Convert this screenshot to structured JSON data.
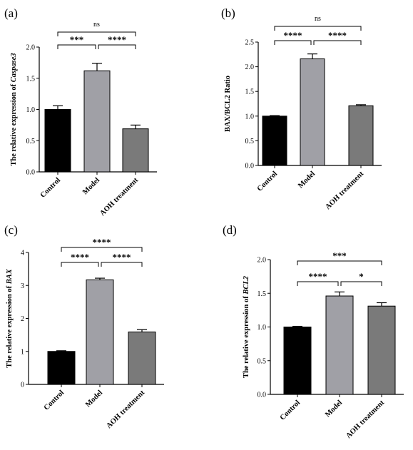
{
  "chart_data": [
    {
      "panel": "(a)",
      "type": "bar",
      "ylabel_prefix": "The relative expression of ",
      "ylabel_gene": "Caspase3",
      "ylabel": "",
      "ylim": [
        0,
        2.0
      ],
      "yticks": [
        "0.0",
        "0.5",
        "1.0",
        "1.5",
        "2.0"
      ],
      "categories": [
        "Control",
        "Model",
        "AOH treatment"
      ],
      "values": [
        1.0,
        1.62,
        0.69
      ],
      "errors": [
        0.06,
        0.12,
        0.06
      ],
      "colors": [
        "#000000",
        "#a0a0a6",
        "#7a7a7a"
      ],
      "comparisons": [
        {
          "from": 0,
          "to": 1,
          "label": "***"
        },
        {
          "from": 1,
          "to": 2,
          "label": "****"
        },
        {
          "from": 0,
          "to": 2,
          "label": "ns"
        }
      ]
    },
    {
      "panel": "(b)",
      "type": "bar",
      "ylabel_prefix": "",
      "ylabel_gene": "",
      "ylabel": "BAX/BCL2 Ratio",
      "ylim": [
        0,
        2.5
      ],
      "yticks": [
        "0.0",
        "0.5",
        "1.0",
        "1.5",
        "2.0",
        "2.5"
      ],
      "categories": [
        "Control",
        "Model",
        "AOH treatment"
      ],
      "values": [
        1.0,
        2.16,
        1.21
      ],
      "errors": [
        0.01,
        0.1,
        0.02
      ],
      "colors": [
        "#000000",
        "#a0a0a6",
        "#7a7a7a"
      ],
      "comparisons": [
        {
          "from": 0,
          "to": 1,
          "label": "****"
        },
        {
          "from": 1,
          "to": 2,
          "label": "****"
        },
        {
          "from": 0,
          "to": 2,
          "label": "ns"
        }
      ]
    },
    {
      "panel": "(c)",
      "type": "bar",
      "ylabel_prefix": "The relative expression of ",
      "ylabel_gene": "BAX",
      "ylabel": "",
      "ylim": [
        0,
        4
      ],
      "yticks": [
        "0",
        "1",
        "2",
        "3",
        "4"
      ],
      "categories": [
        "Control",
        "Model",
        "AOH treatment"
      ],
      "values": [
        1.0,
        3.17,
        1.59
      ],
      "errors": [
        0.02,
        0.05,
        0.07
      ],
      "colors": [
        "#000000",
        "#a0a0a6",
        "#7a7a7a"
      ],
      "comparisons": [
        {
          "from": 0,
          "to": 1,
          "label": "****"
        },
        {
          "from": 1,
          "to": 2,
          "label": "****"
        },
        {
          "from": 0,
          "to": 2,
          "label": "****"
        }
      ]
    },
    {
      "panel": "(d)",
      "type": "bar",
      "ylabel_prefix": "The relative expression of ",
      "ylabel_gene": "BCL2",
      "ylabel": "",
      "ylim": [
        0,
        2.0
      ],
      "yticks": [
        "0.0",
        "0.5",
        "1.0",
        "1.5",
        "2.0"
      ],
      "categories": [
        "Control",
        "Model",
        "AOH treatment"
      ],
      "values": [
        1.0,
        1.46,
        1.31
      ],
      "errors": [
        0.01,
        0.06,
        0.05
      ],
      "colors": [
        "#000000",
        "#a0a0a6",
        "#7a7a7a"
      ],
      "comparisons": [
        {
          "from": 0,
          "to": 1,
          "label": "****"
        },
        {
          "from": 1,
          "to": 2,
          "label": "*"
        },
        {
          "from": 0,
          "to": 2,
          "label": "***"
        }
      ]
    }
  ]
}
